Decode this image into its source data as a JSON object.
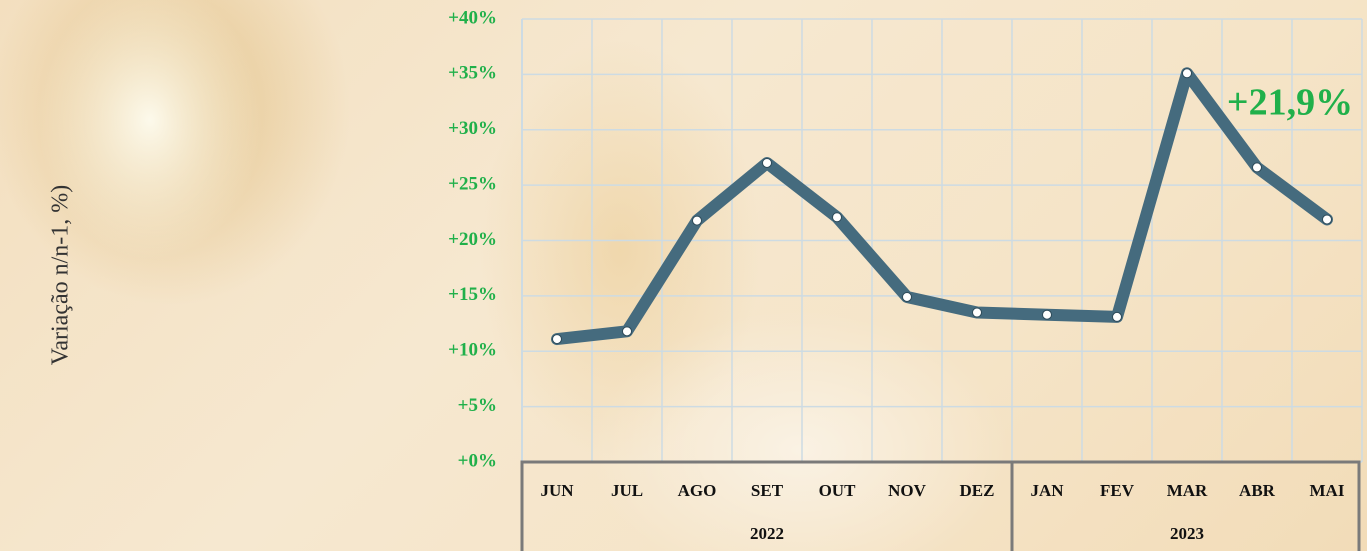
{
  "chart_data": {
    "type": "line",
    "y_label": "Variação n/n-1, %)",
    "annotation": "+21,9%",
    "categories": [
      "JUN",
      "JUL",
      "AGO",
      "SET",
      "OUT",
      "NOV",
      "DEZ",
      "JAN",
      "FEV",
      "MAR",
      "ABR",
      "MAI"
    ],
    "category_groups": [
      {
        "label": "2022",
        "from": "JUN",
        "to": "DEZ"
      },
      {
        "label": "2023",
        "from": "JAN",
        "to": "MAI"
      }
    ],
    "values": [
      11.1,
      11.8,
      21.8,
      27.0,
      22.1,
      14.9,
      13.5,
      13.3,
      13.1,
      35.1,
      26.6,
      21.9
    ],
    "color": "#456b7e",
    "ylim": [
      0,
      40
    ],
    "yticks": [
      {
        "value": 0,
        "label": "+0%"
      },
      {
        "value": 5,
        "label": "+5%"
      },
      {
        "value": 10,
        "label": "+10%"
      },
      {
        "value": 15,
        "label": "+15%"
      },
      {
        "value": 20,
        "label": "+20%"
      },
      {
        "value": 25,
        "label": "+25%"
      },
      {
        "value": 30,
        "label": "+30%"
      },
      {
        "value": 35,
        "label": "+35%"
      },
      {
        "value": 40,
        "label": "+40%"
      }
    ],
    "grid": true
  }
}
